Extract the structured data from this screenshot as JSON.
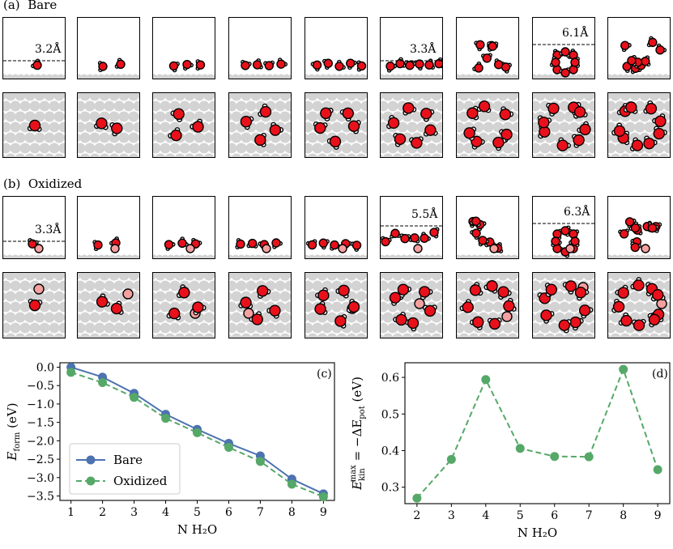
{
  "figure": {
    "panel_a_label": "(a)",
    "panel_a_title": "Bare",
    "panel_b_label": "(b)",
    "panel_b_title": "Oxidized",
    "panel_c_label": "(c)",
    "panel_d_label": "(d)"
  },
  "bare": {
    "cluster_sizes": [
      1,
      2,
      3,
      4,
      5,
      6,
      7,
      8,
      9
    ],
    "side_view_annotations": [
      {
        "cluster_size": 1,
        "text": "3.2Å"
      },
      {
        "cluster_size": 6,
        "text": "3.3Å"
      },
      {
        "cluster_size": 8,
        "text": "6.1Å"
      }
    ]
  },
  "oxidized": {
    "cluster_sizes": [
      1,
      2,
      3,
      4,
      5,
      6,
      7,
      8,
      9
    ],
    "side_view_annotations": [
      {
        "cluster_size": 1,
        "text": "3.3Å"
      },
      {
        "cluster_size": 6,
        "text": "5.5Å"
      },
      {
        "cluster_size": 8,
        "text": "6.3Å"
      }
    ]
  },
  "colors": {
    "oxygen": "#e8111b",
    "hydrogen": "#ffffff",
    "surface_atom": "#d3d3d3",
    "surface_oxygen": "#f5a0a0",
    "bare_series": "#4c72b0",
    "oxidized_series": "#55a868"
  },
  "chart_data": [
    {
      "type": "line",
      "panel": "(c)",
      "title": "",
      "xlabel": "N H₂O",
      "ylabel_main": "E",
      "ylabel_sub": "form",
      "ylabel_unit": " (eV)",
      "x": [
        1,
        2,
        3,
        4,
        5,
        6,
        7,
        8,
        9
      ],
      "xticks": [
        "1",
        "2",
        "3",
        "4",
        "5",
        "6",
        "7",
        "8",
        "9"
      ],
      "xlim": [
        0.65,
        9.35
      ],
      "ylim": [
        -3.62,
        0.12
      ],
      "yticks": [
        0.0,
        -0.5,
        -1.0,
        -1.5,
        -2.0,
        -2.5,
        -3.0,
        -3.5
      ],
      "ytick_labels": [
        "0.0",
        "−0.5",
        "−1.0",
        "−1.5",
        "−2.0",
        "−2.5",
        "−3.0",
        "−3.5"
      ],
      "legend_position": "bottom-left",
      "series": [
        {
          "name": "Bare",
          "style": "solid",
          "color": "#4c72b0",
          "values": [
            0.0,
            -0.27,
            -0.71,
            -1.28,
            -1.69,
            -2.07,
            -2.41,
            -3.04,
            -3.44
          ]
        },
        {
          "name": "Oxidized",
          "style": "dashed",
          "color": "#55a868",
          "values": [
            -0.14,
            -0.42,
            -0.82,
            -1.39,
            -1.78,
            -2.18,
            -2.56,
            -3.18,
            -3.52
          ]
        }
      ]
    },
    {
      "type": "line",
      "panel": "(d)",
      "title": "",
      "xlabel": "N H₂O",
      "ylabel_main": "E",
      "ylabel_sup": "max",
      "ylabel_sub": "kin",
      "ylabel_eq": " = −ΔE",
      "ylabel_sub2": "pot",
      "ylabel_unit": " (eV)",
      "x": [
        2,
        3,
        4,
        5,
        6,
        7,
        8,
        9
      ],
      "xticks": [
        "2",
        "3",
        "4",
        "5",
        "6",
        "7",
        "8",
        "9"
      ],
      "xlim": [
        1.65,
        9.35
      ],
      "ylim": [
        0.255,
        0.64
      ],
      "yticks": [
        0.3,
        0.4,
        0.5,
        0.6
      ],
      "ytick_labels": [
        "0.3",
        "0.4",
        "0.5",
        "0.6"
      ],
      "series": [
        {
          "name": "Oxidized",
          "style": "dashed",
          "color": "#55a868",
          "values": [
            0.27,
            0.376,
            0.594,
            0.406,
            0.384,
            0.383,
            0.622,
            0.348
          ]
        }
      ]
    }
  ]
}
